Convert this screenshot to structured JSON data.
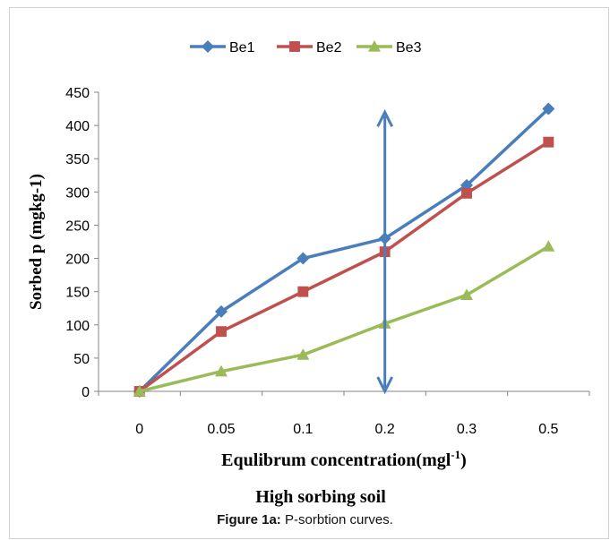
{
  "chart_data": {
    "type": "line",
    "categories": [
      "0",
      "0.05",
      "0.1",
      "0.2",
      "0.3",
      "0.5"
    ],
    "series": [
      {
        "name": "Be1",
        "values": [
          0,
          120,
          200,
          230,
          310,
          425
        ],
        "color": "#4a7ebb",
        "marker": "diamond"
      },
      {
        "name": "Be2",
        "values": [
          0,
          90,
          150,
          210,
          298,
          375
        ],
        "color": "#c0504d",
        "marker": "square"
      },
      {
        "name": "Be3",
        "values": [
          0,
          30,
          55,
          102,
          145,
          218
        ],
        "color": "#9bbb59",
        "marker": "triangle"
      }
    ],
    "ylim": [
      0,
      450
    ],
    "yticks": [
      "0",
      "50",
      "100",
      "150",
      "200",
      "250",
      "300",
      "350",
      "400",
      "450"
    ],
    "ylabel": "Sorbed p (mgkg-1)",
    "xlabel_main": "Equlibrum concentration(mgl",
    "xlabel_sup": "-1",
    "xlabel_tail": ")",
    "subtitle": "High sorbing soil",
    "legend_position": "top",
    "grid": false,
    "annotation": {
      "type": "double-arrow",
      "category": "0.2",
      "from": 0,
      "to": 420,
      "color": "#4a7ebb"
    }
  },
  "caption": {
    "label": "Figure 1a:",
    "text": " P-sorbtion curves."
  }
}
